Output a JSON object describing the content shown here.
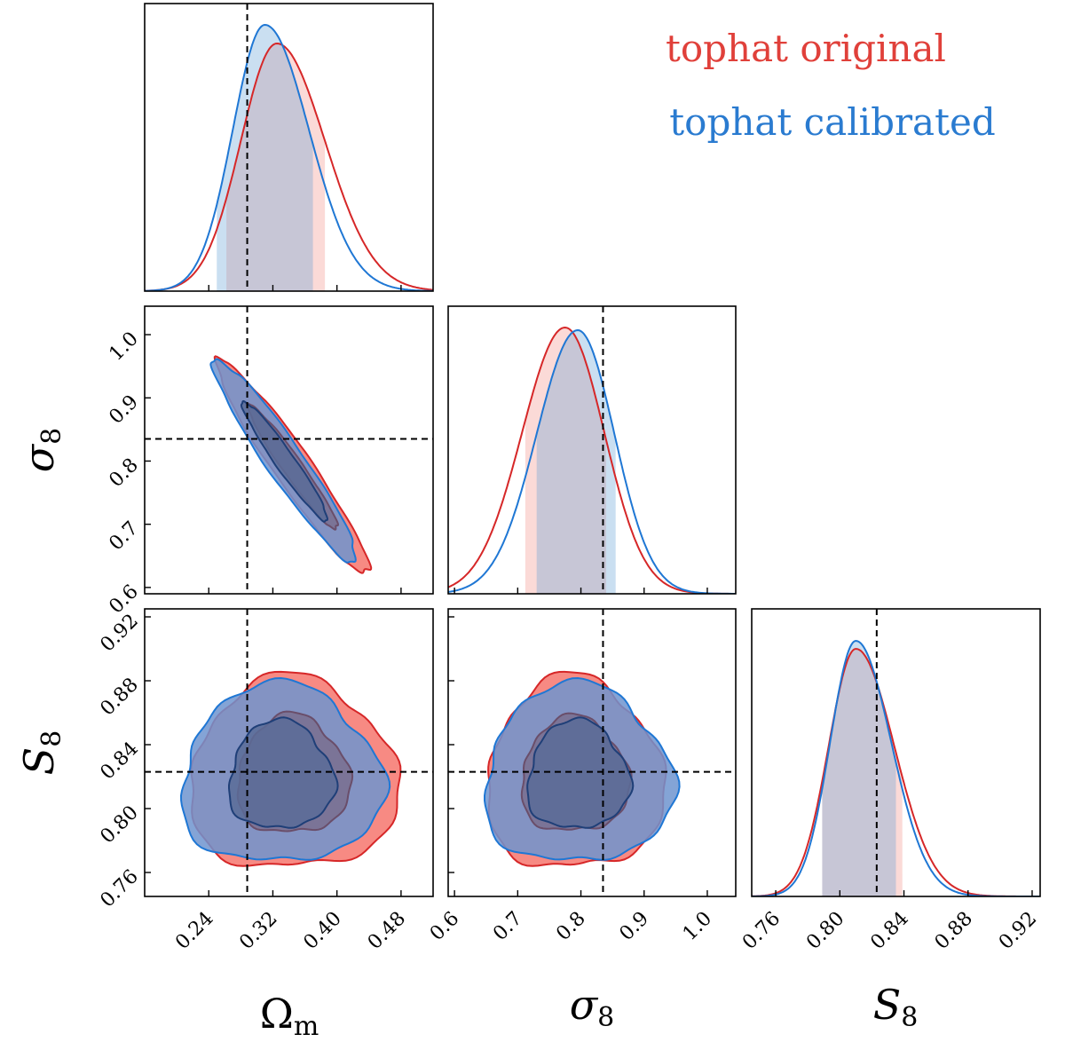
{
  "chart_data": {
    "type": "corner",
    "parameters": [
      {
        "key": "om",
        "label_main": "Ω",
        "label_sub": "m",
        "range": [
          0.16,
          0.52
        ],
        "ticks": [
          "0.24",
          "0.32",
          "0.40",
          "0.48"
        ],
        "fiducial": 0.288
      },
      {
        "key": "s8",
        "label_main": "σ",
        "label_sub": "8",
        "range": [
          0.59,
          1.045
        ],
        "ticks": [
          "0.6",
          "0.7",
          "0.8",
          "0.9",
          "1.0"
        ],
        "fiducial": 0.835
      },
      {
        "key": "S8",
        "label_main": "S",
        "label_sub": "8",
        "range": [
          0.745,
          0.925
        ],
        "ticks": [
          "0.76",
          "0.80",
          "0.84",
          "0.88",
          "0.92"
        ],
        "fiducial": 0.823
      }
    ],
    "series": [
      {
        "name": "tophat original",
        "color": "#d62728",
        "fill": "#f28b82",
        "marginals": {
          "om": {
            "peak": 0.325,
            "sigma_left": 0.045,
            "sigma_right": 0.06,
            "height": 0.93,
            "interval": [
              0.262,
              0.385
            ]
          },
          "s8": {
            "peak": 0.775,
            "sigma_left": 0.068,
            "sigma_right": 0.062,
            "height": 1.0,
            "interval": [
              0.712,
              0.84
            ]
          },
          "S8": {
            "peak": 0.81,
            "sigma_left": 0.017,
            "sigma_right": 0.024,
            "height": 0.93,
            "interval": [
              0.789,
              0.839
            ]
          }
        },
        "contours": {
          "om_s8": {
            "center": [
              0.345,
              0.79
            ],
            "axis": [
              -0.095,
              0.162
            ],
            "outer": [
              2.0,
              0.05
            ],
            "inner": [
              1.18,
              0.026
            ]
          },
          "om_S8": {
            "center": [
              0.345,
              0.82
            ],
            "r95": [
              0.13,
              0.06
            ],
            "r68": [
              0.07,
              0.037
            ]
          },
          "s8_S8": {
            "center": [
              0.79,
              0.82
            ],
            "r95": [
              0.14,
              0.06
            ],
            "r68": [
              0.085,
              0.036
            ]
          }
        }
      },
      {
        "name": "tophat calibrated",
        "color": "#1f77d4",
        "fill": "#5b9bd5",
        "marginals": {
          "om": {
            "peak": 0.31,
            "sigma_left": 0.04,
            "sigma_right": 0.055,
            "height": 1.0,
            "interval": [
              0.25,
              0.37
            ]
          },
          "s8": {
            "peak": 0.795,
            "sigma_left": 0.065,
            "sigma_right": 0.058,
            "height": 0.99,
            "interval": [
              0.73,
              0.855
            ]
          },
          "S8": {
            "peak": 0.81,
            "sigma_left": 0.016,
            "sigma_right": 0.022,
            "height": 0.96,
            "interval": [
              0.789,
              0.835
            ]
          }
        },
        "contours": {
          "om_s8": {
            "center": [
              0.335,
              0.8
            ],
            "axis": [
              -0.095,
              0.162
            ],
            "outer": [
              1.88,
              0.05
            ],
            "inner": [
              1.12,
              0.026
            ]
          },
          "om_S8": {
            "center": [
              0.33,
              0.82
            ],
            "r95": [
              0.125,
              0.056
            ],
            "r68": [
              0.065,
              0.034
            ]
          },
          "s8_S8": {
            "center": [
              0.795,
              0.82
            ],
            "r95": [
              0.148,
              0.056
            ],
            "r68": [
              0.08,
              0.034
            ]
          }
        }
      }
    ]
  },
  "legend": [
    {
      "label": "tophat original",
      "color": "#e0403a"
    },
    {
      "label": "tophat calibrated",
      "color": "#2a7bd0"
    }
  ],
  "colors": {
    "axes": "#000000",
    "fiducial_line": "#000000"
  }
}
